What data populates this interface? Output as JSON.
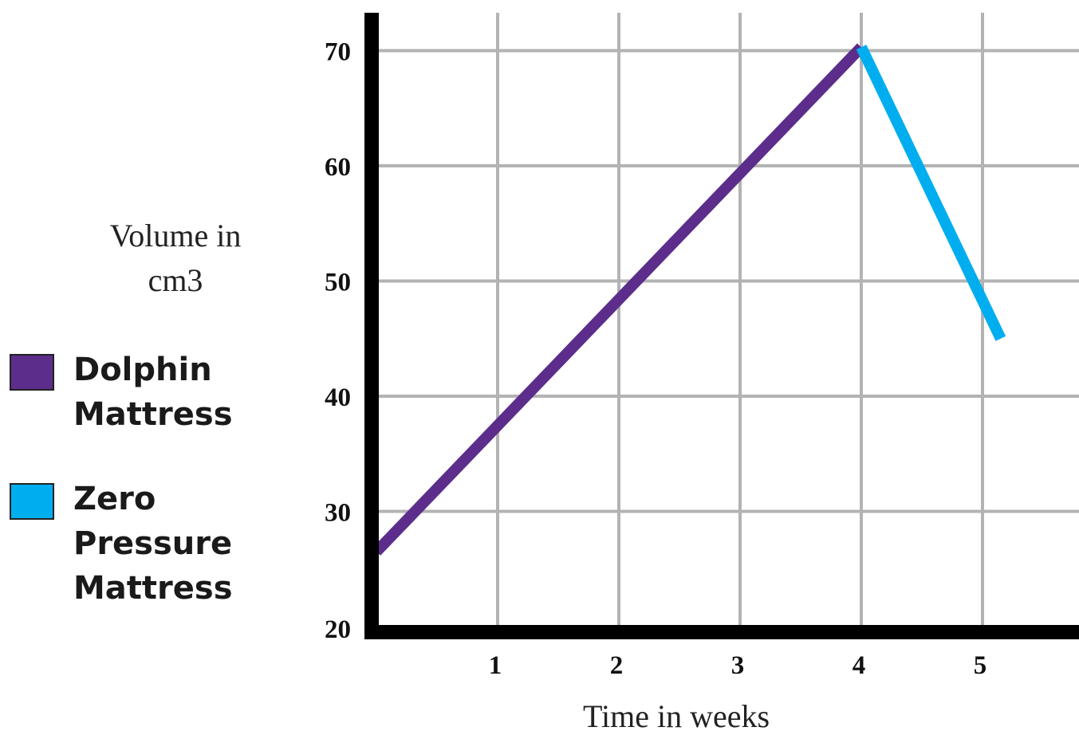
{
  "chart_data": {
    "type": "line",
    "xlabel": "Time in weeks",
    "ylabel": "Volume in cm3",
    "x_ticks": [
      "1",
      "2",
      "3",
      "4",
      "5"
    ],
    "y_ticks": [
      "20",
      "30",
      "40",
      "50",
      "60",
      "70"
    ],
    "xlim": [
      0,
      5.8
    ],
    "ylim": [
      20,
      73
    ],
    "grid": true,
    "legend_position": "left",
    "series": [
      {
        "name": "Dolphin Mattress",
        "color": "#5c2d8b",
        "x": [
          0,
          4
        ],
        "y": [
          26.5,
          70.3
        ]
      },
      {
        "name": "Zero Pressure Mattress",
        "color": "#00aeef",
        "x": [
          4,
          5.15
        ],
        "y": [
          70.3,
          45
        ]
      }
    ]
  },
  "legend": {
    "items": [
      {
        "label_line1": "Dolphin",
        "label_line2": "Mattress",
        "label_line3": "",
        "color": "#5c2d8b"
      },
      {
        "label_line1": "Zero",
        "label_line2": "Pressure",
        "label_line3": "Mattress",
        "color": "#00aeef"
      }
    ]
  },
  "ylabel_lines": [
    "Volume in",
    "cm3"
  ]
}
